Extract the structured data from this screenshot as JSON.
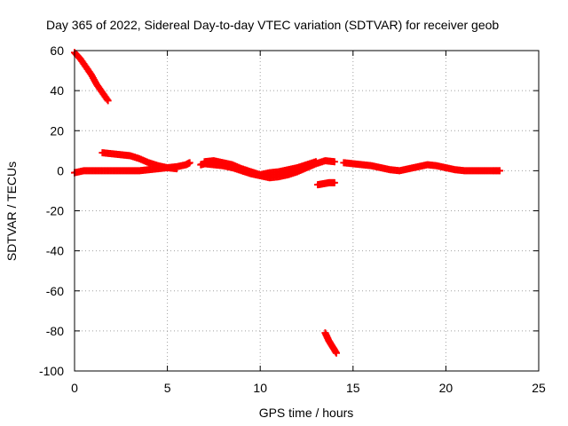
{
  "chart_data": {
    "type": "scatter",
    "title": "Day 365 of 2022, Sidereal Day-to-day VTEC variation (SDTVAR) for receiver geob",
    "xlabel": "GPS time / hours",
    "ylabel": "SDTVAR / TECUs",
    "xlim": [
      0,
      25
    ],
    "ylim": [
      -100,
      60
    ],
    "xticks": [
      0,
      5,
      10,
      15,
      20,
      25
    ],
    "yticks": [
      -100,
      -80,
      -60,
      -40,
      -20,
      0,
      20,
      40,
      60
    ],
    "grid": true,
    "marker": "plus",
    "series_color": "#ff0000",
    "segments": [
      {
        "name": "early-steep-drop",
        "points": [
          [
            0.0,
            59
          ],
          [
            0.3,
            56
          ],
          [
            0.6,
            52
          ],
          [
            0.9,
            48
          ],
          [
            1.2,
            43
          ],
          [
            1.5,
            39
          ],
          [
            1.8,
            35
          ]
        ]
      },
      {
        "name": "main-band-low",
        "points": [
          [
            0.0,
            -1
          ],
          [
            0.5,
            0
          ],
          [
            1.0,
            0
          ],
          [
            1.5,
            0
          ],
          [
            2.0,
            0
          ],
          [
            2.5,
            0
          ],
          [
            3.0,
            0
          ],
          [
            3.5,
            0
          ],
          [
            4.0,
            0.5
          ],
          [
            4.5,
            1
          ],
          [
            5.0,
            1.5
          ],
          [
            5.5,
            2
          ],
          [
            6.0,
            3
          ],
          [
            6.2,
            4
          ]
        ]
      },
      {
        "name": "main-band-high",
        "points": [
          [
            1.5,
            9
          ],
          [
            2.0,
            8.5
          ],
          [
            2.5,
            8
          ],
          [
            3.0,
            7.5
          ],
          [
            3.5,
            6
          ],
          [
            4.0,
            4
          ],
          [
            4.5,
            2.5
          ],
          [
            5.0,
            1.5
          ],
          [
            5.5,
            1
          ]
        ]
      },
      {
        "name": "midday-wave",
        "points": [
          [
            6.8,
            3
          ],
          [
            7.0,
            3.5
          ],
          [
            7.5,
            3
          ],
          [
            8.0,
            2.5
          ],
          [
            8.5,
            1.5
          ],
          [
            9.0,
            0
          ],
          [
            9.5,
            -1.5
          ],
          [
            10.0,
            -2.5
          ],
          [
            10.5,
            -3.5
          ],
          [
            11.0,
            -3
          ],
          [
            11.5,
            -2
          ],
          [
            12.0,
            -0.5
          ],
          [
            12.5,
            1.5
          ],
          [
            13.0,
            3.5
          ],
          [
            13.5,
            5
          ],
          [
            14.0,
            4.5
          ]
        ]
      },
      {
        "name": "midday-wave-alt",
        "points": [
          [
            7.0,
            4.5
          ],
          [
            7.5,
            5
          ],
          [
            8.0,
            4
          ],
          [
            8.5,
            3
          ],
          [
            9.0,
            1
          ],
          [
            9.5,
            -0.5
          ],
          [
            10.0,
            -2
          ],
          [
            10.5,
            -1
          ],
          [
            11.0,
            -0.5
          ],
          [
            11.5,
            0.5
          ],
          [
            12.0,
            1.5
          ],
          [
            12.5,
            3
          ],
          [
            13.0,
            4.5
          ]
        ]
      },
      {
        "name": "offset-segment",
        "points": [
          [
            13.1,
            -7
          ],
          [
            13.4,
            -6.5
          ],
          [
            13.7,
            -6
          ],
          [
            14.0,
            -6
          ]
        ]
      },
      {
        "name": "late-steep-drop",
        "points": [
          [
            13.5,
            -81
          ],
          [
            13.7,
            -85
          ],
          [
            13.9,
            -88
          ],
          [
            14.1,
            -91
          ]
        ]
      },
      {
        "name": "afternoon-band",
        "points": [
          [
            14.5,
            4
          ],
          [
            15.0,
            3.5
          ],
          [
            15.5,
            3
          ],
          [
            16.0,
            2.5
          ],
          [
            16.5,
            1.5
          ],
          [
            17.0,
            0.5
          ],
          [
            17.5,
            0
          ],
          [
            18.0,
            1
          ],
          [
            18.5,
            2
          ],
          [
            19.0,
            3
          ],
          [
            19.5,
            2.5
          ],
          [
            20.0,
            1.5
          ],
          [
            20.5,
            0.5
          ],
          [
            21.0,
            0
          ],
          [
            21.5,
            0
          ],
          [
            22.0,
            0
          ],
          [
            22.5,
            0
          ],
          [
            22.9,
            0
          ]
        ]
      }
    ]
  }
}
